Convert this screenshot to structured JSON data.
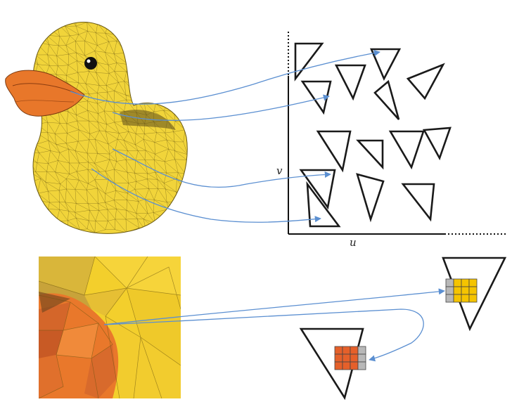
{
  "diagram": {
    "uv_axes": {
      "u_label": "u",
      "v_label": "v"
    },
    "colors": {
      "duck_body": "#f1d43a",
      "duck_beak": "#e8772a",
      "mesh_line": "#5a4a10",
      "arrow": "#5b8fd1",
      "triangle_stroke": "#1a1a1a",
      "texel_yellow": "#f5c400",
      "texel_orange": "#e5602a",
      "texel_gray": "#b8b8b8"
    },
    "icons": [
      "duck-mesh-image",
      "zoomed-surface-image",
      "uv-triangle",
      "texel-grid"
    ]
  }
}
